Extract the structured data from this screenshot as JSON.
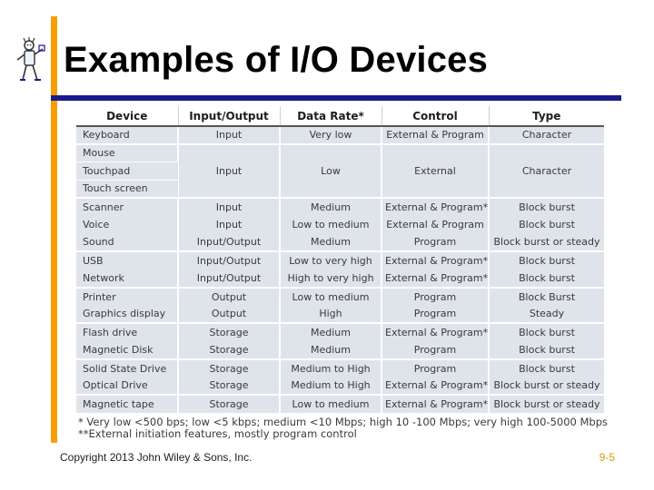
{
  "header": {
    "title": "Examples of I/O Devices"
  },
  "table": {
    "columns": [
      "Device",
      "Input/Output",
      "Data Rate*",
      "Control",
      "Type"
    ],
    "rows": [
      {
        "devices": [
          "Keyboard"
        ],
        "io": "Input",
        "rate": "Very low",
        "control": "External & Program",
        "type": "Character"
      },
      {
        "devices": [
          "Mouse",
          "Touchpad",
          "Touch screen"
        ],
        "io": "Input",
        "rate": "Low",
        "control": "External",
        "type": "Character"
      },
      {
        "devices": [
          "Scanner"
        ],
        "io": "Input",
        "rate": "Medium",
        "control": "External & Program**",
        "type": "Block burst"
      },
      {
        "devices": [
          "Voice"
        ],
        "io": "Input",
        "rate": "Low to medium",
        "control": "External & Program",
        "type": "Block burst"
      },
      {
        "devices": [
          "Sound"
        ],
        "io": "Input/Output",
        "rate": "Medium",
        "control": "Program",
        "type": "Block burst or steady"
      },
      {
        "devices": [
          "USB"
        ],
        "io": "Input/Output",
        "rate": "Low to very high",
        "control": "External & Program**",
        "type": "Block burst"
      },
      {
        "devices": [
          "Network"
        ],
        "io": "Input/Output",
        "rate": "High to very high",
        "control": "External & Program**",
        "type": "Block burst"
      },
      {
        "devices": [
          "Printer"
        ],
        "io": "Output",
        "rate": "Low to medium",
        "control": "Program",
        "type": "Block Burst"
      },
      {
        "devices": [
          "Graphics display"
        ],
        "io": "Output",
        "rate": "High",
        "control": "Program",
        "type": "Steady"
      },
      {
        "devices": [
          "Flash drive"
        ],
        "io": "Storage",
        "rate": "Medium",
        "control": "External & Program**",
        "type": "Block burst"
      },
      {
        "devices": [
          "Magnetic Disk"
        ],
        "io": "Storage",
        "rate": "Medium",
        "control": "Program",
        "type": "Block burst"
      },
      {
        "devices": [
          "Solid State Drive"
        ],
        "io": "Storage",
        "rate": "Medium to High",
        "control": "Program",
        "type": "Block burst"
      },
      {
        "devices": [
          "Optical Drive"
        ],
        "io": "Storage",
        "rate": "Medium to High",
        "control": "External & Program**",
        "type": "Block burst or steady"
      },
      {
        "devices": [
          "Magnetic tape"
        ],
        "io": "Storage",
        "rate": "Low to medium",
        "control": "External & Program**",
        "type": "Block burst or steady"
      }
    ]
  },
  "footnotes": [
    "* Very low <500 bps; low <5 kbps; medium <10 Mbps; high 10 -100 Mbps; very high 100-5000 Mbps",
    "**External initiation features, mostly program control"
  ],
  "footer": {
    "copyright": "Copyright 2013 John Wiley & Sons, Inc.",
    "slide_number": "9-5"
  },
  "colors": {
    "accent_bar": "#f5a000",
    "title_rule": "#1a1a8c",
    "cell_background": "#dfe3ea",
    "slide_number": "#d4a000"
  }
}
